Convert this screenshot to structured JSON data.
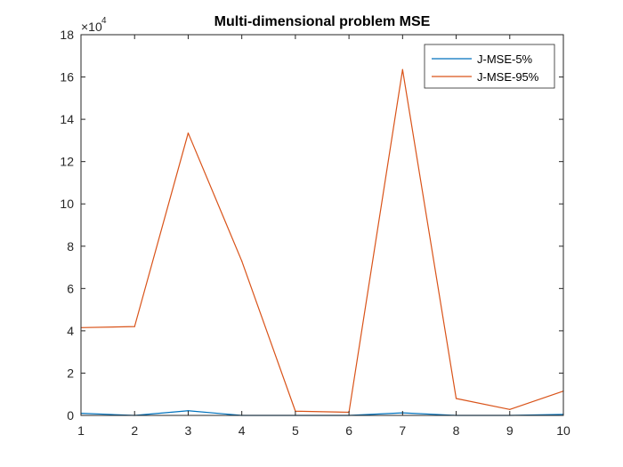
{
  "chart_data": {
    "type": "line",
    "title": "Multi-dimensional problem MSE",
    "xlabel": "",
    "ylabel": "",
    "x": [
      1,
      2,
      3,
      4,
      5,
      6,
      7,
      8,
      9,
      10
    ],
    "xlim": [
      1,
      10
    ],
    "ylim": [
      0,
      18
    ],
    "xticks": [
      "1",
      "2",
      "3",
      "4",
      "5",
      "6",
      "7",
      "8",
      "9",
      "10"
    ],
    "yticks": [
      "0",
      "2",
      "4",
      "6",
      "8",
      "10",
      "12",
      "14",
      "16",
      "18"
    ],
    "y_exponent": {
      "prefix": "×10",
      "power": "4"
    },
    "legend_position": "top-right",
    "grid": false,
    "series": [
      {
        "name": "J-MSE-5%",
        "color": "#0072BD",
        "values": [
          0.1,
          0.0,
          0.22,
          0.0,
          0.0,
          0.0,
          0.12,
          0.0,
          0.0,
          0.05
        ]
      },
      {
        "name": "J-MSE-95%",
        "color": "#D95319",
        "values": [
          4.15,
          4.2,
          13.35,
          7.3,
          0.2,
          0.15,
          16.35,
          0.8,
          0.28,
          1.15
        ]
      }
    ]
  }
}
